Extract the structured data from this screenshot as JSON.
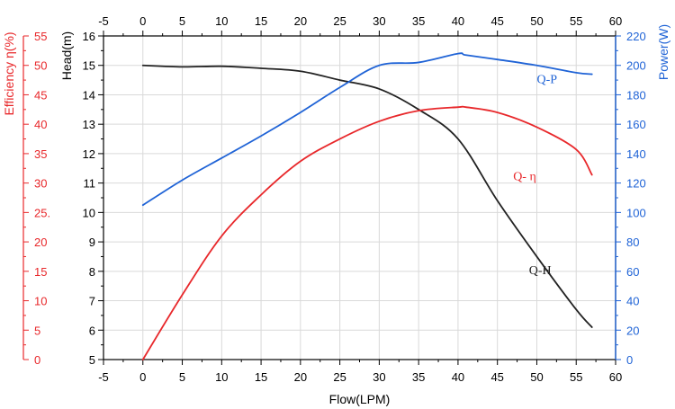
{
  "colors": {
    "axis": "#000000",
    "efficiency": "#e8282b",
    "power": "#1f63d6",
    "head": "#222222"
  },
  "chart_data": {
    "type": "line",
    "title": "",
    "xlabel": "Flow(LPM)",
    "xlim": [
      -5,
      60
    ],
    "x_ticks": [
      -5,
      0,
      5,
      10,
      15,
      20,
      25,
      30,
      35,
      40,
      45,
      50,
      55,
      60
    ],
    "axes": {
      "head": {
        "label": "Head(m)",
        "range": [
          5,
          16
        ],
        "ticks": [
          5,
          6,
          7,
          8,
          9,
          10,
          11,
          12,
          13,
          14,
          15,
          16
        ],
        "tick_labels": [
          "5",
          "6",
          "7",
          "8",
          "9",
          "10",
          "11",
          "12",
          "13",
          "14",
          "15",
          "16"
        ]
      },
      "efficiency": {
        "label": "Efficiency η(%)",
        "range": [
          0,
          55
        ],
        "ticks": [
          0,
          5,
          10,
          15,
          20,
          25,
          30,
          35,
          40,
          45,
          50,
          55
        ],
        "tick_labels": [
          "0",
          "5",
          "10",
          "15",
          "20",
          "25.",
          "30",
          "35",
          "40",
          "45",
          "50",
          "55"
        ]
      },
      "power": {
        "label": "Power(W)",
        "range": [
          0,
          220
        ],
        "ticks": [
          0,
          20,
          40,
          60,
          80,
          100,
          120,
          140,
          160,
          180,
          200,
          220
        ],
        "tick_labels": [
          "0",
          "20",
          "40",
          "60",
          "80",
          "100",
          "120",
          "140",
          "160",
          "180",
          "200",
          "220"
        ]
      }
    },
    "series": [
      {
        "name": "Q-H",
        "axis": "head",
        "color": "#222222",
        "x": [
          0,
          5,
          10,
          15,
          20,
          25,
          30,
          35,
          40,
          45,
          50,
          55,
          57
        ],
        "y": [
          15.0,
          14.95,
          14.97,
          14.9,
          14.8,
          14.5,
          14.2,
          13.5,
          12.5,
          10.4,
          8.5,
          6.7,
          6.1
        ]
      },
      {
        "name": "Q- η",
        "axis": "efficiency",
        "color": "#e8282b",
        "x": [
          0,
          5,
          10,
          15,
          20,
          25,
          30,
          35,
          40,
          41,
          45,
          50,
          55,
          57
        ],
        "y": [
          0,
          11,
          21,
          28,
          33.7,
          37.5,
          40.5,
          42.3,
          42.9,
          42.9,
          42,
          39.5,
          35.7,
          31.4
        ]
      },
      {
        "name": "Q-P",
        "axis": "power",
        "color": "#1f63d6",
        "x": [
          0,
          5,
          10,
          15,
          20,
          25,
          30,
          35,
          40,
          41,
          45,
          50,
          55,
          57
        ],
        "y": [
          105,
          122,
          137,
          152,
          168,
          185,
          200,
          202,
          208,
          207,
          204,
          200,
          195,
          194
        ]
      }
    ]
  }
}
